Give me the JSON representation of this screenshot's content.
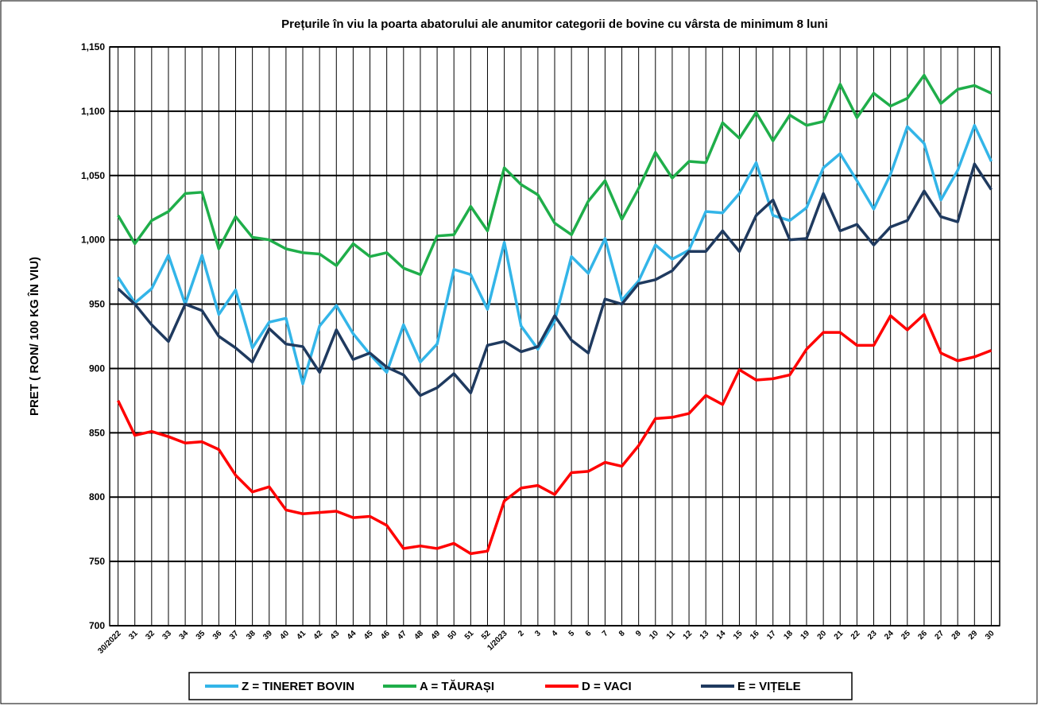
{
  "chart_data": {
    "type": "line",
    "title": "Prețurile în viu la poarta abatorului ale anumitor categorii de  bovine cu vârsta de minimum 8 luni",
    "y_label": "PRET  ( RON/ 100 KG ÎN VIU)",
    "categories": [
      "30/2022",
      "31",
      "32",
      "33",
      "34",
      "35",
      "36",
      "37",
      "38",
      "39",
      "40",
      "41",
      "42",
      "43",
      "44",
      "45",
      "46",
      "47",
      "48",
      "49",
      "50",
      "51",
      "52",
      "1/2023",
      "2",
      "3",
      "4",
      "5",
      "6",
      "7",
      "8",
      "9",
      "10",
      "11",
      "12",
      "13",
      "14",
      "15",
      "16",
      "17",
      "18",
      "19",
      "20",
      "21",
      "22",
      "23",
      "24",
      "25",
      "26",
      "27",
      "28",
      "29",
      "30"
    ],
    "series": [
      {
        "name": "Z  = TINERET BOVIN",
        "color": "#33b5e8",
        "values": [
          971,
          951,
          962,
          988,
          950,
          988,
          942,
          961,
          916,
          936,
          939,
          888,
          933,
          949,
          927,
          911,
          897,
          934,
          905,
          919,
          977,
          973,
          946,
          998,
          933,
          915,
          937,
          987,
          974,
          1001,
          953,
          968,
          996,
          985,
          992,
          1022,
          1021,
          1036,
          1060,
          1019,
          1015,
          1025,
          1056,
          1067,
          1046,
          1024,
          1051,
          1088,
          1075,
          1031,
          1054,
          1089,
          1061
        ]
      },
      {
        "name": "A = TĂURAȘI",
        "color": "#1fae4a",
        "values": [
          1019,
          997,
          1015,
          1022,
          1036,
          1037,
          993,
          1018,
          1002,
          1000,
          993,
          990,
          989,
          980,
          997,
          987,
          990,
          978,
          973,
          1003,
          1004,
          1026,
          1007,
          1056,
          1043,
          1035,
          1013,
          1004,
          1030,
          1046,
          1016,
          1040,
          1068,
          1048,
          1061,
          1060,
          1091,
          1079,
          1099,
          1077,
          1097,
          1089,
          1092,
          1121,
          1095,
          1114,
          1104,
          1110,
          1128,
          1106,
          1117,
          1120,
          1114
        ]
      },
      {
        "name": "D = VACI",
        "color": "#ff0000",
        "values": [
          875,
          848,
          851,
          847,
          842,
          843,
          837,
          817,
          804,
          808,
          790,
          787,
          788,
          789,
          784,
          785,
          778,
          760,
          762,
          760,
          764,
          756,
          758,
          797,
          807,
          809,
          802,
          819,
          820,
          827,
          824,
          840,
          861,
          862,
          865,
          879,
          872,
          899,
          891,
          892,
          895,
          915,
          928,
          928,
          918,
          918,
          941,
          930,
          942,
          912,
          906,
          909,
          914
        ]
      },
      {
        "name": "E = VIȚELE",
        "color": "#1f3a5f",
        "values": [
          962,
          950,
          934,
          921,
          950,
          945,
          925,
          916,
          905,
          931,
          919,
          917,
          897,
          930,
          907,
          912,
          901,
          895,
          879,
          885,
          896,
          881,
          918,
          921,
          913,
          917,
          941,
          922,
          912,
          954,
          950,
          966,
          969,
          976,
          991,
          991,
          1007,
          991,
          1019,
          1031,
          1000,
          1001,
          1036,
          1007,
          1012,
          996,
          1010,
          1015,
          1038,
          1018,
          1014,
          1059,
          1039
        ]
      }
    ],
    "ylim": [
      700,
      1150
    ],
    "yticks": [
      700,
      750,
      800,
      850,
      900,
      950,
      {
        "value": 1000,
        "label": "1,000"
      },
      {
        "value": 1050,
        "label": "1,050"
      },
      {
        "value": 1100,
        "label": "1,100"
      },
      {
        "value": 1150,
        "label": "1,150"
      }
    ],
    "grid": true,
    "legend": "bottom"
  }
}
